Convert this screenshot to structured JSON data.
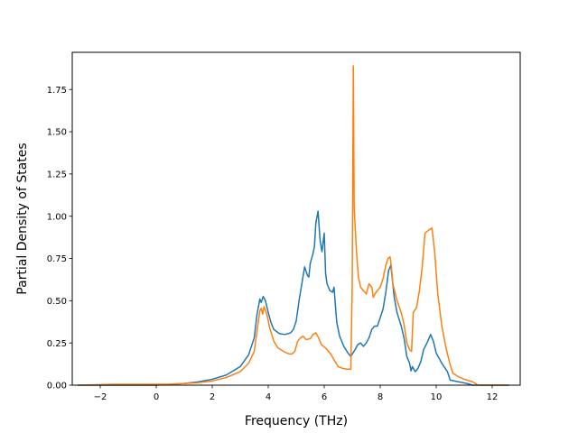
{
  "chart_data": {
    "type": "line",
    "title": "",
    "xlabel": "Frequency (THz)",
    "ylabel": "Partial Density of States",
    "xlim": [
      -3.0,
      13.0
    ],
    "ylim": [
      0.0,
      1.97
    ],
    "xticks": [
      -2,
      0,
      2,
      4,
      6,
      8,
      10,
      12
    ],
    "yticks": [
      0.0,
      0.25,
      0.5,
      0.75,
      1.0,
      1.25,
      1.5,
      1.75
    ],
    "xtick_labels": [
      "−2",
      "0",
      "2",
      "4",
      "6",
      "8",
      "10",
      "12"
    ],
    "ytick_labels": [
      "0.00",
      "0.25",
      "0.50",
      "0.75",
      "1.00",
      "1.25",
      "1.50",
      "1.75"
    ],
    "grid": false,
    "legend": "none",
    "series": [
      {
        "color": "#1f77b4",
        "points": [
          [
            -2.8,
            0.0
          ],
          [
            -1.5,
            0.0
          ],
          [
            0.0,
            0.0
          ],
          [
            0.5,
            0.005
          ],
          [
            1.0,
            0.01
          ],
          [
            1.5,
            0.02
          ],
          [
            2.0,
            0.035
          ],
          [
            2.5,
            0.06
          ],
          [
            3.0,
            0.11
          ],
          [
            3.3,
            0.18
          ],
          [
            3.5,
            0.28
          ],
          [
            3.6,
            0.42
          ],
          [
            3.7,
            0.51
          ],
          [
            3.75,
            0.49
          ],
          [
            3.82,
            0.525
          ],
          [
            3.9,
            0.5
          ],
          [
            4.0,
            0.43
          ],
          [
            4.1,
            0.37
          ],
          [
            4.2,
            0.33
          ],
          [
            4.4,
            0.305
          ],
          [
            4.6,
            0.3
          ],
          [
            4.8,
            0.31
          ],
          [
            4.9,
            0.33
          ],
          [
            5.0,
            0.38
          ],
          [
            5.1,
            0.5
          ],
          [
            5.2,
            0.6
          ],
          [
            5.3,
            0.7
          ],
          [
            5.4,
            0.65
          ],
          [
            5.45,
            0.64
          ],
          [
            5.5,
            0.72
          ],
          [
            5.6,
            0.78
          ],
          [
            5.65,
            0.82
          ],
          [
            5.7,
            0.96
          ],
          [
            5.78,
            1.03
          ],
          [
            5.85,
            0.86
          ],
          [
            5.92,
            0.79
          ],
          [
            6.0,
            0.9
          ],
          [
            6.05,
            0.66
          ],
          [
            6.1,
            0.6
          ],
          [
            6.2,
            0.56
          ],
          [
            6.3,
            0.55
          ],
          [
            6.35,
            0.58
          ],
          [
            6.4,
            0.47
          ],
          [
            6.45,
            0.37
          ],
          [
            6.55,
            0.29
          ],
          [
            6.7,
            0.23
          ],
          [
            6.85,
            0.19
          ],
          [
            6.95,
            0.17
          ],
          [
            7.1,
            0.21
          ],
          [
            7.2,
            0.24
          ],
          [
            7.3,
            0.25
          ],
          [
            7.4,
            0.23
          ],
          [
            7.5,
            0.25
          ],
          [
            7.6,
            0.28
          ],
          [
            7.7,
            0.33
          ],
          [
            7.8,
            0.35
          ],
          [
            7.9,
            0.35
          ],
          [
            8.0,
            0.4
          ],
          [
            8.1,
            0.45
          ],
          [
            8.2,
            0.55
          ],
          [
            8.3,
            0.68
          ],
          [
            8.38,
            0.71
          ],
          [
            8.45,
            0.6
          ],
          [
            8.5,
            0.52
          ],
          [
            8.6,
            0.43
          ],
          [
            8.75,
            0.35
          ],
          [
            8.85,
            0.28
          ],
          [
            8.95,
            0.17
          ],
          [
            9.05,
            0.13
          ],
          [
            9.1,
            0.085
          ],
          [
            9.15,
            0.11
          ],
          [
            9.25,
            0.08
          ],
          [
            9.35,
            0.1
          ],
          [
            9.45,
            0.14
          ],
          [
            9.55,
            0.21
          ],
          [
            9.7,
            0.26
          ],
          [
            9.8,
            0.3
          ],
          [
            9.9,
            0.26
          ],
          [
            10.0,
            0.19
          ],
          [
            10.2,
            0.13
          ],
          [
            10.4,
            0.08
          ],
          [
            10.5,
            0.03
          ],
          [
            10.8,
            0.02
          ],
          [
            11.1,
            0.01
          ],
          [
            11.3,
            0.0
          ],
          [
            12.0,
            0.0
          ],
          [
            12.6,
            0.0
          ]
        ]
      },
      {
        "color": "#ff7f0e",
        "points": [
          [
            -2.8,
            0.0
          ],
          [
            -1.5,
            0.005
          ],
          [
            0.0,
            0.005
          ],
          [
            0.5,
            0.005
          ],
          [
            1.0,
            0.01
          ],
          [
            1.5,
            0.015
          ],
          [
            2.0,
            0.025
          ],
          [
            2.5,
            0.045
          ],
          [
            3.0,
            0.08
          ],
          [
            3.3,
            0.13
          ],
          [
            3.5,
            0.2
          ],
          [
            3.6,
            0.32
          ],
          [
            3.7,
            0.44
          ],
          [
            3.75,
            0.455
          ],
          [
            3.8,
            0.42
          ],
          [
            3.85,
            0.465
          ],
          [
            3.95,
            0.42
          ],
          [
            4.05,
            0.34
          ],
          [
            4.2,
            0.26
          ],
          [
            4.35,
            0.22
          ],
          [
            4.6,
            0.195
          ],
          [
            4.75,
            0.185
          ],
          [
            4.85,
            0.185
          ],
          [
            4.95,
            0.2
          ],
          [
            5.05,
            0.26
          ],
          [
            5.15,
            0.28
          ],
          [
            5.25,
            0.29
          ],
          [
            5.35,
            0.27
          ],
          [
            5.5,
            0.275
          ],
          [
            5.6,
            0.3
          ],
          [
            5.7,
            0.31
          ],
          [
            5.8,
            0.28
          ],
          [
            5.9,
            0.24
          ],
          [
            6.05,
            0.22
          ],
          [
            6.15,
            0.2
          ],
          [
            6.25,
            0.18
          ],
          [
            6.35,
            0.15
          ],
          [
            6.5,
            0.11
          ],
          [
            6.65,
            0.1
          ],
          [
            6.8,
            0.095
          ],
          [
            6.95,
            0.095
          ],
          [
            7.0,
            0.6
          ],
          [
            7.04,
            1.89
          ],
          [
            7.07,
            1.05
          ],
          [
            7.15,
            0.8
          ],
          [
            7.22,
            0.64
          ],
          [
            7.3,
            0.58
          ],
          [
            7.4,
            0.56
          ],
          [
            7.5,
            0.54
          ],
          [
            7.6,
            0.6
          ],
          [
            7.7,
            0.58
          ],
          [
            7.75,
            0.52
          ],
          [
            7.85,
            0.55
          ],
          [
            8.0,
            0.58
          ],
          [
            8.1,
            0.63
          ],
          [
            8.2,
            0.71
          ],
          [
            8.28,
            0.75
          ],
          [
            8.35,
            0.76
          ],
          [
            8.4,
            0.7
          ],
          [
            8.45,
            0.6
          ],
          [
            8.6,
            0.5
          ],
          [
            8.75,
            0.43
          ],
          [
            8.85,
            0.36
          ],
          [
            8.95,
            0.25
          ],
          [
            9.05,
            0.21
          ],
          [
            9.12,
            0.2
          ],
          [
            9.18,
            0.43
          ],
          [
            9.3,
            0.46
          ],
          [
            9.4,
            0.56
          ],
          [
            9.5,
            0.7
          ],
          [
            9.6,
            0.9
          ],
          [
            9.75,
            0.92
          ],
          [
            9.85,
            0.93
          ],
          [
            9.95,
            0.78
          ],
          [
            10.05,
            0.55
          ],
          [
            10.2,
            0.35
          ],
          [
            10.35,
            0.22
          ],
          [
            10.5,
            0.12
          ],
          [
            10.6,
            0.07
          ],
          [
            10.8,
            0.05
          ],
          [
            11.0,
            0.035
          ],
          [
            11.3,
            0.02
          ],
          [
            11.5,
            0.0
          ],
          [
            12.0,
            0.0
          ],
          [
            12.6,
            0.0
          ]
        ]
      }
    ]
  }
}
